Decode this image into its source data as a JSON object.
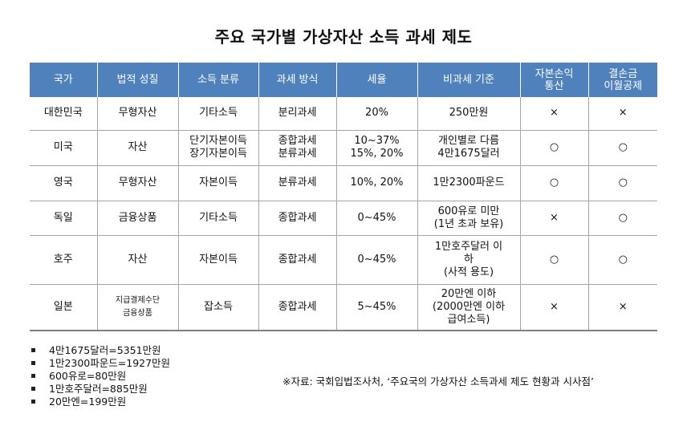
{
  "title": "주요 국가별 가상자산 소득 과세 제도",
  "table": {
    "headers": [
      "국가",
      "법적 성질",
      "소득 분류",
      "과세 방식",
      "세율",
      "비과세 기준",
      "자본손익\n통산",
      "결손금\n이월공제"
    ],
    "rows": [
      [
        "대한민국",
        "무형자산",
        "기타소득",
        "분리과세",
        "20%",
        "250만원",
        "×",
        "×"
      ],
      [
        "미국",
        "자산",
        "단기자본이득\n장기자본이득",
        "종합과세\n분류과세",
        "10~37%\n15%, 20%",
        "개인별로 다름\n4만1675달러",
        "○",
        "○"
      ],
      [
        "영국",
        "무형자산",
        "자본이득",
        "분류과세",
        "10%, 20%",
        "1만2300파운드",
        "○",
        "○"
      ],
      [
        "독일",
        "금융상품",
        "기타소득",
        "종합과세",
        "0~45%",
        "600유로 미만\n(1년 초과 보유)",
        "×",
        "○"
      ],
      [
        "호주",
        "자산",
        "자본이득",
        "종합과세",
        "0~45%",
        "1만호주달러 이\n하\n(사적 용도)",
        "○",
        "○"
      ],
      [
        "일본",
        "지급결제수단\n금융상품",
        "잡소득",
        "종합과세",
        "5~45%",
        "20만엔 이하\n(2000만엔 이하\n급여소득)",
        "×",
        "×"
      ]
    ]
  },
  "notes": [
    "4만1675달러=5351만원",
    "1만2300파운드=1927만원",
    "600유로=80만원",
    "1만호주달러=885만원",
    "20만엔=199만원"
  ],
  "source": "※자료: 국회입법조사처, ‘주요국의 가상자산 소득과세 제도 현황과 시사점’",
  "colors": {
    "header_bg": "#4f81bd",
    "header_text": "#ffffff",
    "rule": "#a6a6a6"
  }
}
